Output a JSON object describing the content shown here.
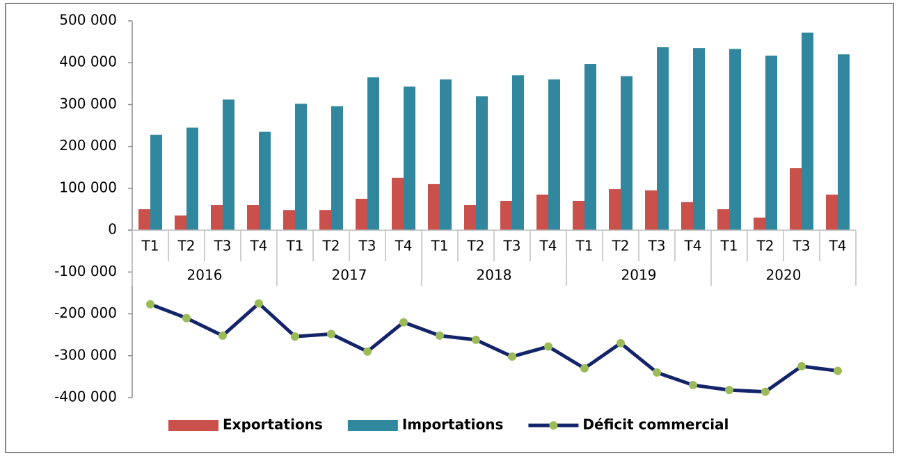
{
  "chart_data": {
    "type": "bar-line",
    "categories": [
      "T1",
      "T2",
      "T3",
      "T4",
      "T1",
      "T2",
      "T3",
      "T4",
      "T1",
      "T2",
      "T3",
      "T4",
      "T1",
      "T2",
      "T3",
      "T4",
      "T1",
      "T2",
      "T3",
      "T4"
    ],
    "groups": [
      {
        "label": "2016",
        "span": 4
      },
      {
        "label": "2017",
        "span": 4
      },
      {
        "label": "2018",
        "span": 4
      },
      {
        "label": "2019",
        "span": 4
      },
      {
        "label": "2020",
        "span": 4
      }
    ],
    "series": [
      {
        "name": "Exportations",
        "type": "bar",
        "color": "#c9504b",
        "values": [
          50000,
          35000,
          60000,
          60000,
          48000,
          48000,
          75000,
          125000,
          110000,
          60000,
          70000,
          85000,
          70000,
          98000,
          95000,
          67000,
          50000,
          30000,
          148000,
          85000
        ]
      },
      {
        "name": "Importations",
        "type": "bar",
        "color": "#31879e",
        "values": [
          228000,
          245000,
          312000,
          235000,
          302000,
          296000,
          365000,
          343000,
          360000,
          320000,
          370000,
          360000,
          397000,
          368000,
          437000,
          435000,
          433000,
          417000,
          472000,
          420000
        ]
      },
      {
        "name": "Déficit commercial",
        "type": "line",
        "color": "#14246a",
        "marker_color": "#9bbb59",
        "values": [
          -177000,
          -210000,
          -252000,
          -175000,
          -254000,
          -248000,
          -290000,
          -220000,
          -252000,
          -262000,
          -302000,
          -278000,
          -330000,
          -270000,
          -340000,
          -370000,
          -382000,
          -386000,
          -325000,
          -336000
        ]
      }
    ],
    "ylim": [
      -400000,
      500000
    ],
    "yticks": [
      {
        "value": -400000,
        "label": "-400 000"
      },
      {
        "value": -300000,
        "label": "-300 000"
      },
      {
        "value": -200000,
        "label": "-200 000"
      },
      {
        "value": -100000,
        "label": "-100 000"
      },
      0,
      {
        "value": 100000,
        "label": "100 000"
      },
      {
        "value": 200000,
        "label": "200 000"
      },
      {
        "value": 300000,
        "label": "300 000"
      },
      {
        "value": 400000,
        "label": "400 000"
      },
      {
        "value": 500000,
        "label": "500 000"
      }
    ],
    "legend": "bottom"
  }
}
